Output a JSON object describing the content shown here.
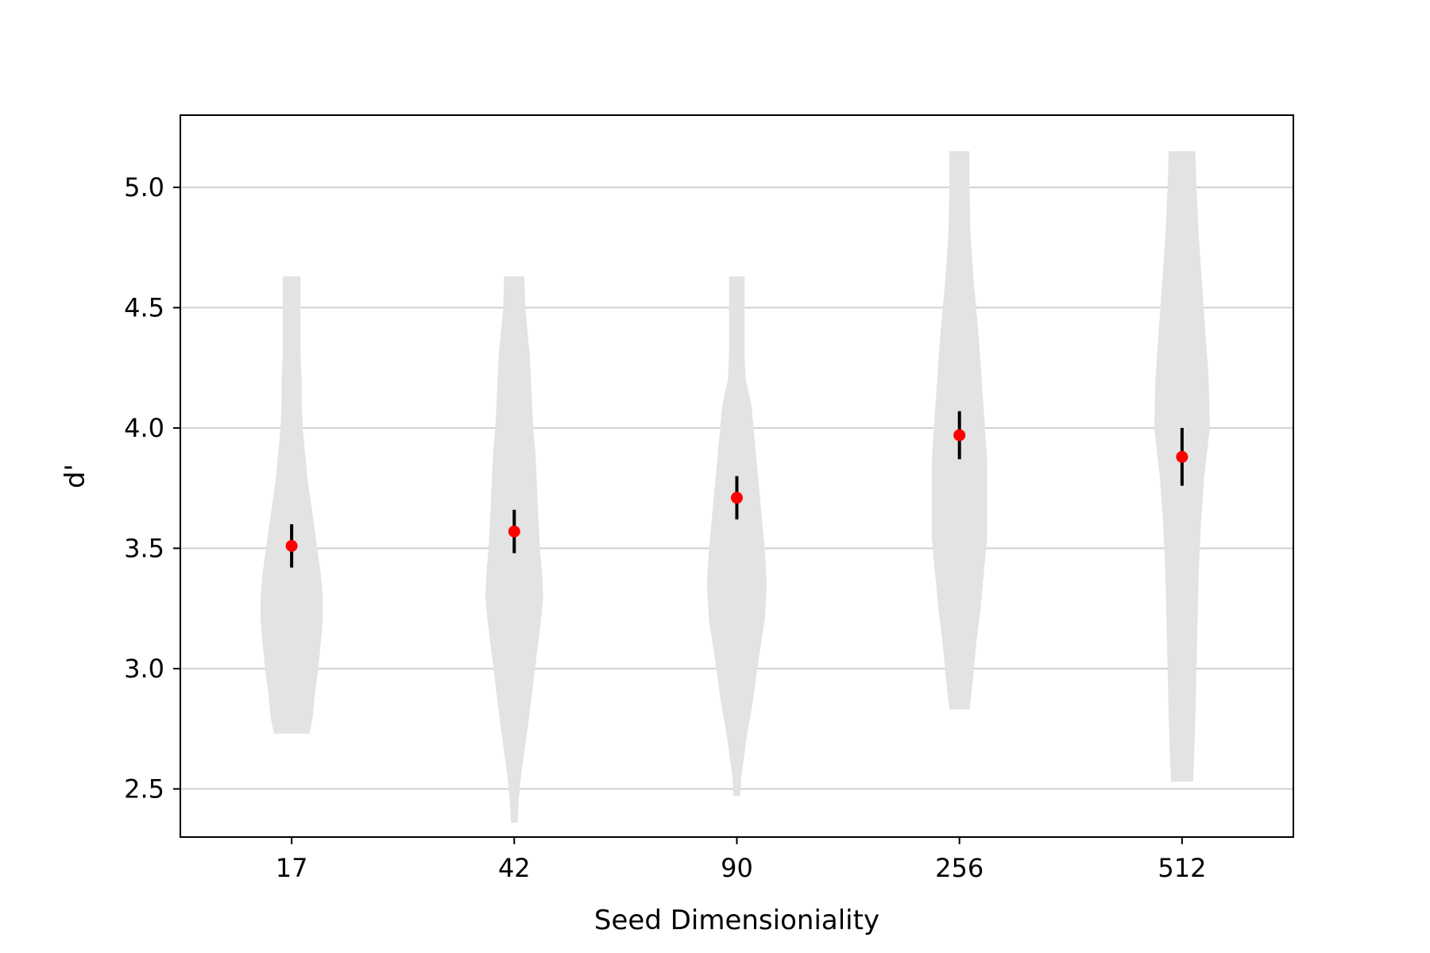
{
  "chart_data": {
    "type": "violin",
    "xlabel": "Seed Dimensioniality",
    "ylabel": "d'",
    "categories": [
      "17",
      "42",
      "90",
      "256",
      "512"
    ],
    "ylim": [
      2.3,
      5.3
    ],
    "yticks": [
      2.5,
      3.0,
      3.5,
      4.0,
      4.5,
      5.0
    ],
    "ytick_labels": [
      "2.5",
      "3.0",
      "3.5",
      "4.0",
      "4.5",
      "5.0"
    ],
    "grid": "horizontal",
    "violin_color": "#e3e3e3",
    "grid_color": "#d0d0d0",
    "mean_color": "#ff0000",
    "errorbar_color": "#000000",
    "means": [
      3.51,
      3.57,
      3.71,
      3.97,
      3.88
    ],
    "error_low": [
      3.42,
      3.48,
      3.62,
      3.87,
      3.76
    ],
    "error_high": [
      3.6,
      3.66,
      3.8,
      4.07,
      4.0
    ],
    "violins": [
      {
        "category": "17",
        "min": 2.73,
        "max": 4.63,
        "profile": [
          [
            2.73,
            0.16
          ],
          [
            2.8,
            0.19
          ],
          [
            2.9,
            0.21
          ],
          [
            3.0,
            0.24
          ],
          [
            3.1,
            0.26
          ],
          [
            3.2,
            0.28
          ],
          [
            3.3,
            0.28
          ],
          [
            3.4,
            0.26
          ],
          [
            3.5,
            0.23
          ],
          [
            3.6,
            0.2
          ],
          [
            3.7,
            0.17
          ],
          [
            3.8,
            0.14
          ],
          [
            3.9,
            0.12
          ],
          [
            4.0,
            0.1
          ],
          [
            4.1,
            0.09
          ],
          [
            4.2,
            0.09
          ],
          [
            4.3,
            0.08
          ],
          [
            4.4,
            0.08
          ],
          [
            4.5,
            0.08
          ],
          [
            4.63,
            0.08
          ]
        ]
      },
      {
        "category": "42",
        "min": 2.36,
        "max": 4.63,
        "profile": [
          [
            2.36,
            0.03
          ],
          [
            2.45,
            0.04
          ],
          [
            2.55,
            0.06
          ],
          [
            2.65,
            0.09
          ],
          [
            2.75,
            0.12
          ],
          [
            2.9,
            0.16
          ],
          [
            3.05,
            0.2
          ],
          [
            3.2,
            0.24
          ],
          [
            3.3,
            0.26
          ],
          [
            3.4,
            0.25
          ],
          [
            3.5,
            0.23
          ],
          [
            3.6,
            0.22
          ],
          [
            3.7,
            0.21
          ],
          [
            3.8,
            0.2
          ],
          [
            3.9,
            0.19
          ],
          [
            4.0,
            0.17
          ],
          [
            4.1,
            0.16
          ],
          [
            4.2,
            0.15
          ],
          [
            4.3,
            0.14
          ],
          [
            4.4,
            0.12
          ],
          [
            4.5,
            0.1
          ],
          [
            4.63,
            0.09
          ]
        ]
      },
      {
        "category": "90",
        "min": 2.47,
        "max": 4.63,
        "profile": [
          [
            2.47,
            0.03
          ],
          [
            2.55,
            0.04
          ],
          [
            2.65,
            0.07
          ],
          [
            2.75,
            0.1
          ],
          [
            2.85,
            0.14
          ],
          [
            2.95,
            0.17
          ],
          [
            3.05,
            0.2
          ],
          [
            3.2,
            0.25
          ],
          [
            3.35,
            0.27
          ],
          [
            3.5,
            0.25
          ],
          [
            3.6,
            0.23
          ],
          [
            3.7,
            0.21
          ],
          [
            3.8,
            0.19
          ],
          [
            3.9,
            0.17
          ],
          [
            4.0,
            0.15
          ],
          [
            4.1,
            0.13
          ],
          [
            4.2,
            0.08
          ],
          [
            4.3,
            0.07
          ],
          [
            4.4,
            0.07
          ],
          [
            4.5,
            0.07
          ],
          [
            4.63,
            0.07
          ]
        ]
      },
      {
        "category": "256",
        "min": 2.83,
        "max": 5.15,
        "profile": [
          [
            2.83,
            0.09
          ],
          [
            2.95,
            0.12
          ],
          [
            3.1,
            0.15
          ],
          [
            3.25,
            0.19
          ],
          [
            3.4,
            0.22
          ],
          [
            3.55,
            0.25
          ],
          [
            3.7,
            0.25
          ],
          [
            3.85,
            0.25
          ],
          [
            4.0,
            0.23
          ],
          [
            4.2,
            0.2
          ],
          [
            4.4,
            0.17
          ],
          [
            4.6,
            0.13
          ],
          [
            4.8,
            0.1
          ],
          [
            5.0,
            0.09
          ],
          [
            5.15,
            0.09
          ]
        ]
      },
      {
        "category": "512",
        "min": 2.53,
        "max": 5.15,
        "profile": [
          [
            2.53,
            0.1
          ],
          [
            2.65,
            0.11
          ],
          [
            2.8,
            0.12
          ],
          [
            3.0,
            0.13
          ],
          [
            3.2,
            0.14
          ],
          [
            3.4,
            0.15
          ],
          [
            3.6,
            0.17
          ],
          [
            3.8,
            0.2
          ],
          [
            4.0,
            0.25
          ],
          [
            4.2,
            0.24
          ],
          [
            4.4,
            0.21
          ],
          [
            4.6,
            0.18
          ],
          [
            4.8,
            0.15
          ],
          [
            5.0,
            0.13
          ],
          [
            5.15,
            0.12
          ]
        ]
      }
    ]
  }
}
